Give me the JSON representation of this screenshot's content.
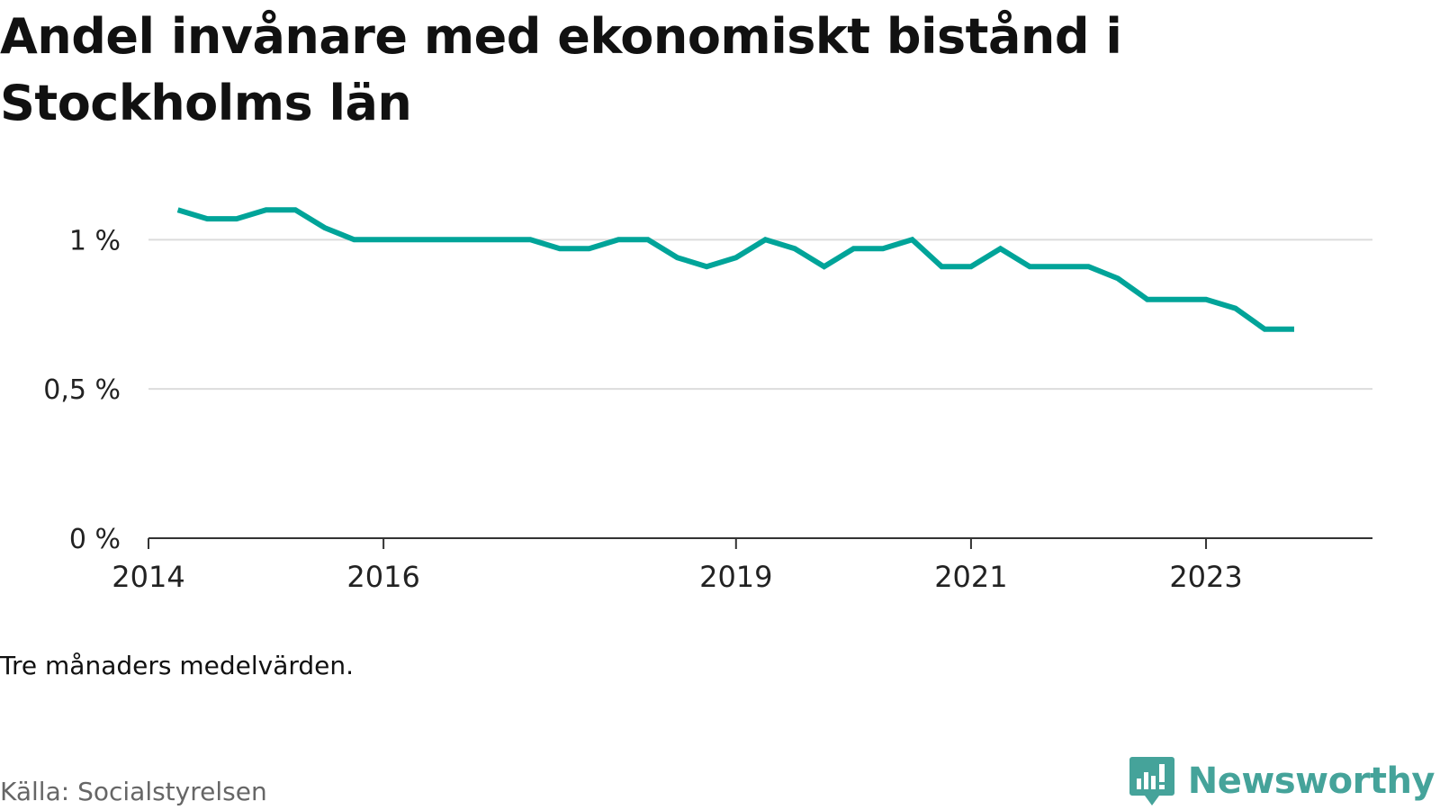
{
  "title": "Andel invånare med ekonomiskt bistånd i Stockholms län",
  "note": "Tre månaders medelvärden.",
  "source": "Källa: Socialstyrelsen",
  "brand": {
    "name": "Newsworthy",
    "icon": "newsworthy-logo-icon"
  },
  "colors": {
    "line": "#00a499",
    "grid": "#dcdcdc",
    "axis": "#333333",
    "brand": "#45a39a"
  },
  "chart_data": {
    "type": "line",
    "title": "Andel invånare med ekonomiskt bistånd i Stockholms län",
    "xlabel": "",
    "ylabel": "",
    "ylim": [
      0,
      1.2
    ],
    "xlim": [
      "2014-01",
      "2024-06"
    ],
    "grid": true,
    "legend": "none",
    "y_ticks": [
      {
        "value": 0,
        "label": "0 %"
      },
      {
        "value": 0.5,
        "label": "0,5 %"
      },
      {
        "value": 1,
        "label": "1 %"
      }
    ],
    "x_ticks": [
      {
        "date": "2014-01",
        "label": "2014"
      },
      {
        "date": "2016-01",
        "label": "2016"
      },
      {
        "date": "2019-01",
        "label": "2019"
      },
      {
        "date": "2021-01",
        "label": "2021"
      },
      {
        "date": "2023-01",
        "label": "2023"
      }
    ],
    "x": [
      "2014-04",
      "2014-07",
      "2014-10",
      "2015-01",
      "2015-04",
      "2015-07",
      "2015-10",
      "2016-01",
      "2016-04",
      "2016-07",
      "2016-10",
      "2017-01",
      "2017-04",
      "2017-07",
      "2017-10",
      "2018-01",
      "2018-04",
      "2018-07",
      "2018-10",
      "2019-01",
      "2019-04",
      "2019-07",
      "2019-10",
      "2020-01",
      "2020-04",
      "2020-07",
      "2020-10",
      "2021-01",
      "2021-04",
      "2021-07",
      "2021-10",
      "2022-01",
      "2022-04",
      "2022-07",
      "2022-10",
      "2023-01",
      "2023-04",
      "2023-07",
      "2023-10"
    ],
    "series": [
      {
        "values": [
          1.1,
          1.07,
          1.07,
          1.1,
          1.1,
          1.04,
          1.0,
          1.0,
          1.0,
          1.0,
          1.0,
          1.0,
          1.0,
          0.97,
          0.97,
          1.0,
          1.0,
          0.94,
          0.91,
          0.94,
          1.0,
          0.97,
          0.91,
          0.97,
          0.97,
          1.0,
          0.91,
          0.91,
          0.97,
          0.91,
          0.91,
          0.91,
          0.87,
          0.8,
          0.8,
          0.8,
          0.77,
          0.7,
          0.7
        ]
      }
    ]
  }
}
